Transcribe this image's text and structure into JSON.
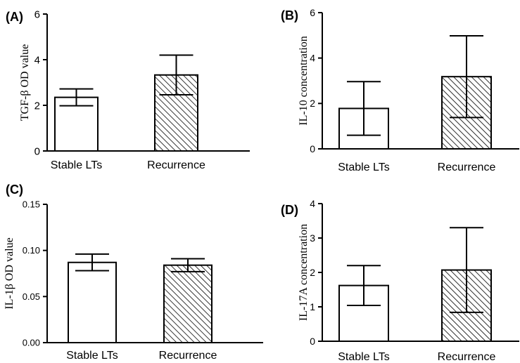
{
  "chart_data": [
    {
      "type": "bar",
      "panel_label": "(A)",
      "ylabel": "TGF-β OD value",
      "categories": [
        "Stable LTs",
        "Recurrence"
      ],
      "values": [
        2.35,
        3.33
      ],
      "errors": [
        0.37,
        0.87
      ],
      "fills": [
        "white",
        "hatched"
      ],
      "ylim": [
        0,
        6
      ],
      "yticks": [
        "0",
        "2",
        "4",
        "6"
      ]
    },
    {
      "type": "bar",
      "panel_label": "(B)",
      "ylabel": "IL-10 concentration",
      "categories": [
        "Stable LTs",
        "Recurrence"
      ],
      "values": [
        1.78,
        3.18
      ],
      "errors": [
        1.18,
        1.8
      ],
      "fills": [
        "white",
        "hatched"
      ],
      "ylim": [
        0,
        6
      ],
      "yticks": [
        "0",
        "2",
        "4",
        "6"
      ]
    },
    {
      "type": "bar",
      "panel_label": "(C)",
      "ylabel": "IL-1β  OD value",
      "categories": [
        "Stable LTs",
        "Recurrence"
      ],
      "values": [
        0.087,
        0.084
      ],
      "errors": [
        0.009,
        0.007
      ],
      "fills": [
        "white",
        "hatched"
      ],
      "ylim": [
        0,
        0.15
      ],
      "yticks": [
        "0.00",
        "0.05",
        "0.10",
        "0.15"
      ]
    },
    {
      "type": "bar",
      "panel_label": "(D)",
      "ylabel": "IL-17A concentration",
      "categories": [
        "Stable LTs",
        "Recurrence"
      ],
      "values": [
        1.62,
        2.07
      ],
      "errors": [
        0.58,
        1.23
      ],
      "fills": [
        "white",
        "hatched"
      ],
      "ylim": [
        0,
        4
      ],
      "yticks": [
        "0",
        "1",
        "2",
        "3",
        "4"
      ]
    }
  ]
}
